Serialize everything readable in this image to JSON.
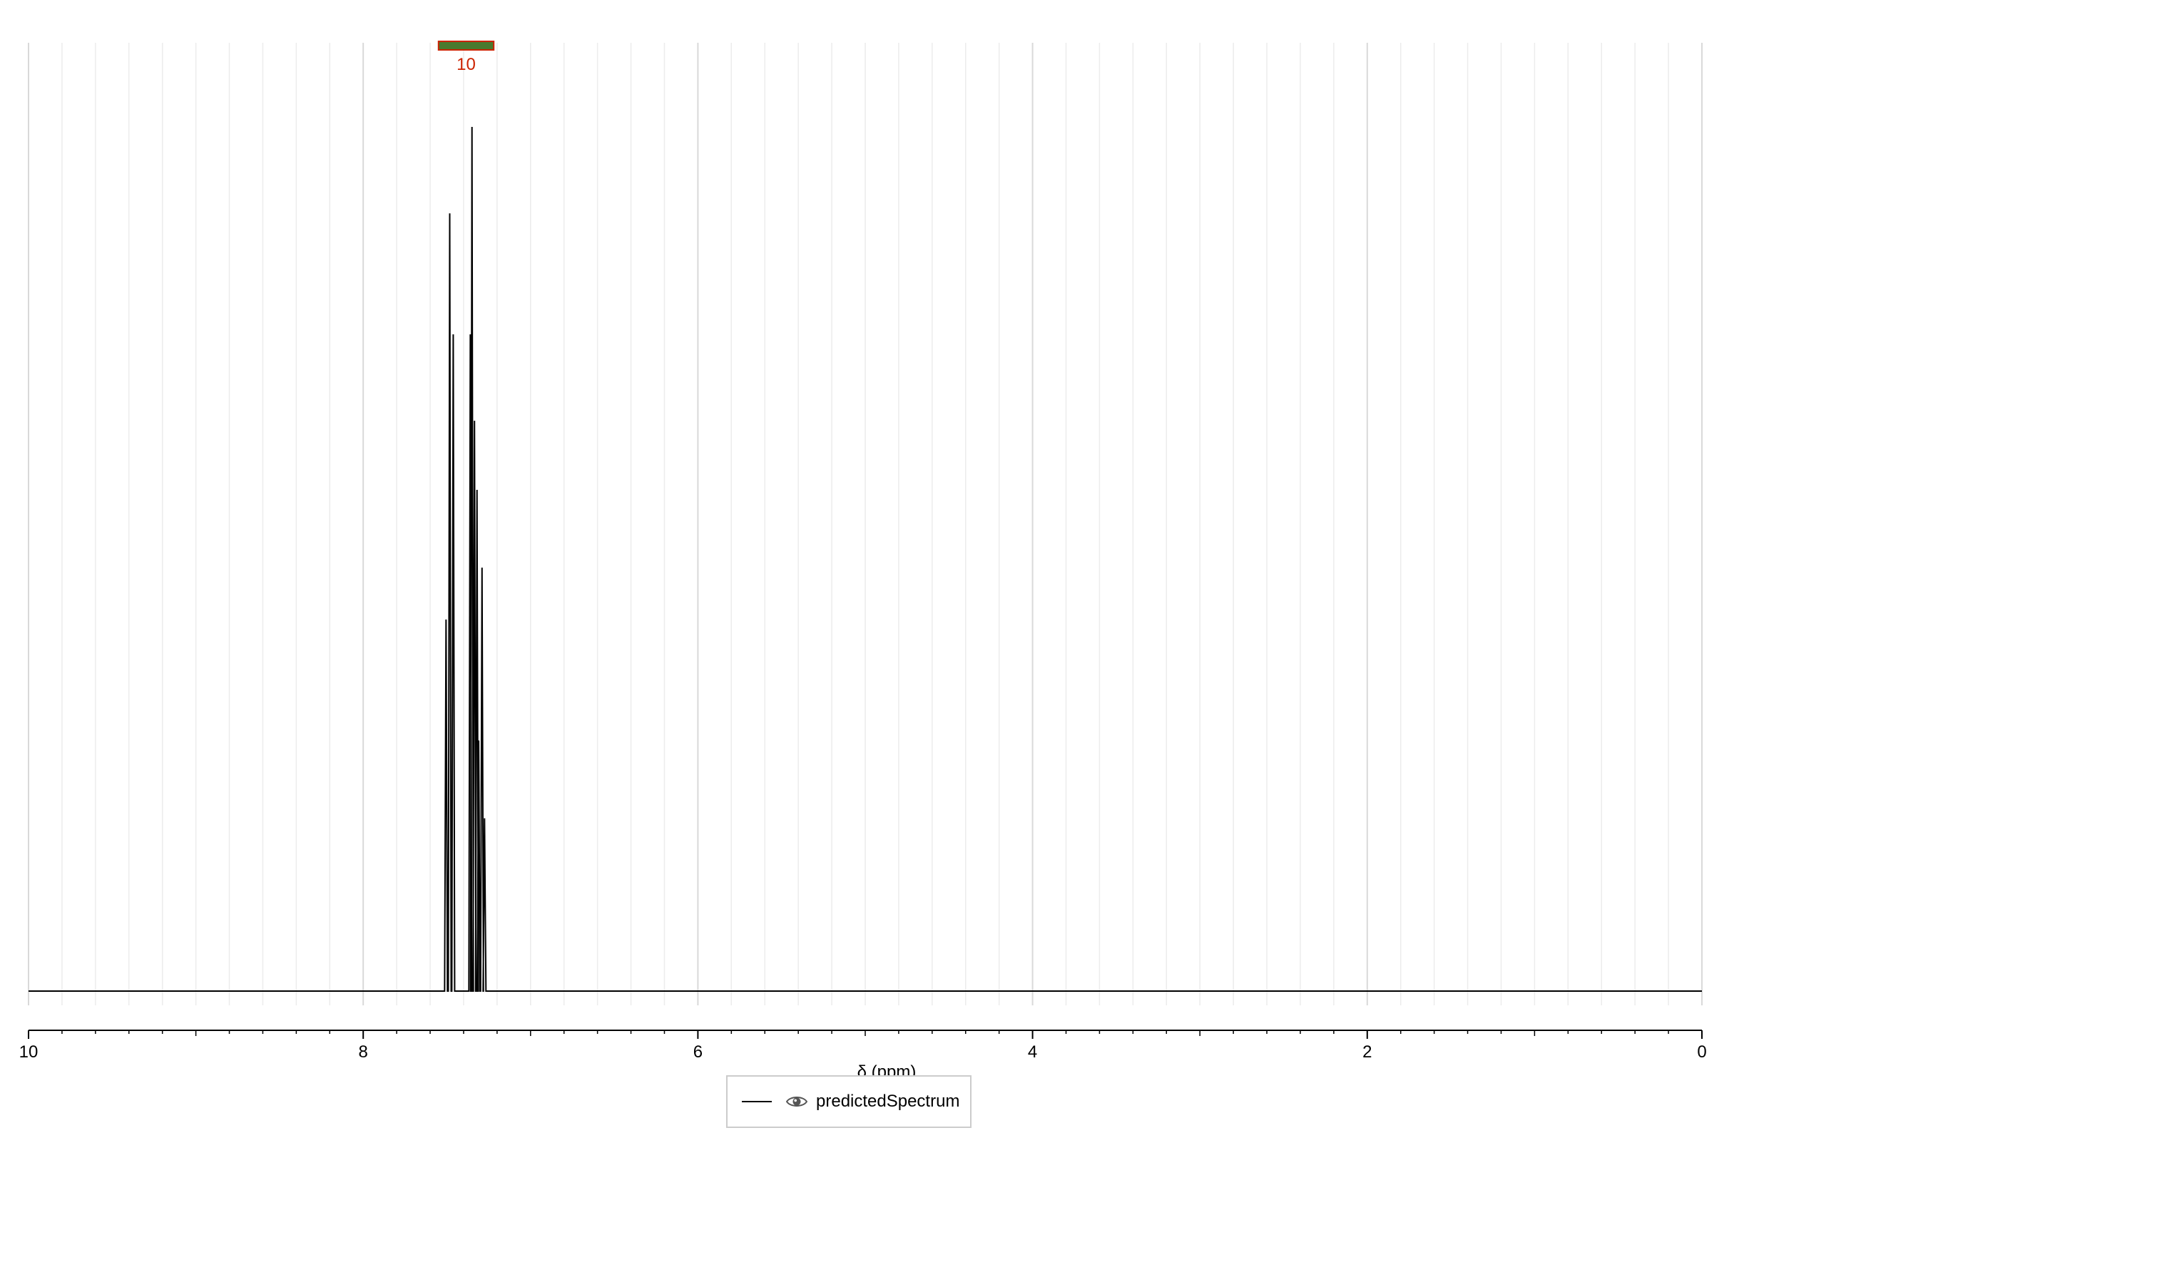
{
  "chart_data": {
    "type": "line",
    "title": "",
    "xlabel": "δ (ppm)",
    "ylabel": "",
    "xlim": [
      10,
      0
    ],
    "x_reversed": true,
    "x_ticks": [
      "10",
      "8",
      "6",
      "4",
      "2",
      "0"
    ],
    "x_tick_values": [
      10,
      8,
      6,
      4,
      2,
      0
    ],
    "x_minor_step": 0.2,
    "ylim": [
      0,
      1.0
    ],
    "grid": true,
    "legend": "bottom-center",
    "series": [
      {
        "name": "predictedSpectrum",
        "color": "#000000",
        "peaks": [
          {
            "ppm": 7.505,
            "intensity": 0.43
          },
          {
            "ppm": 7.483,
            "intensity": 0.9
          },
          {
            "ppm": 7.462,
            "intensity": 0.76
          },
          {
            "ppm": 7.36,
            "intensity": 0.76
          },
          {
            "ppm": 7.35,
            "intensity": 1.0
          },
          {
            "ppm": 7.335,
            "intensity": 0.66
          },
          {
            "ppm": 7.32,
            "intensity": 0.58
          },
          {
            "ppm": 7.31,
            "intensity": 0.29
          },
          {
            "ppm": 7.29,
            "intensity": 0.49
          },
          {
            "ppm": 7.275,
            "intensity": 0.2
          }
        ]
      }
    ],
    "integrals": [
      {
        "from": 7.55,
        "to": 7.22,
        "label": "10",
        "bar_color": "#4a7a2e",
        "label_color": "#cc2200"
      }
    ]
  },
  "legend": {
    "label": "predictedSpectrum",
    "icon": "eye-icon"
  },
  "colors": {
    "grid_major": "#d9d9d9",
    "grid_minor": "#ececec",
    "axis": "#000000",
    "integral_bar": "#4a7a2e",
    "integral_border": "#cc2200",
    "integral_label": "#cc2200"
  }
}
